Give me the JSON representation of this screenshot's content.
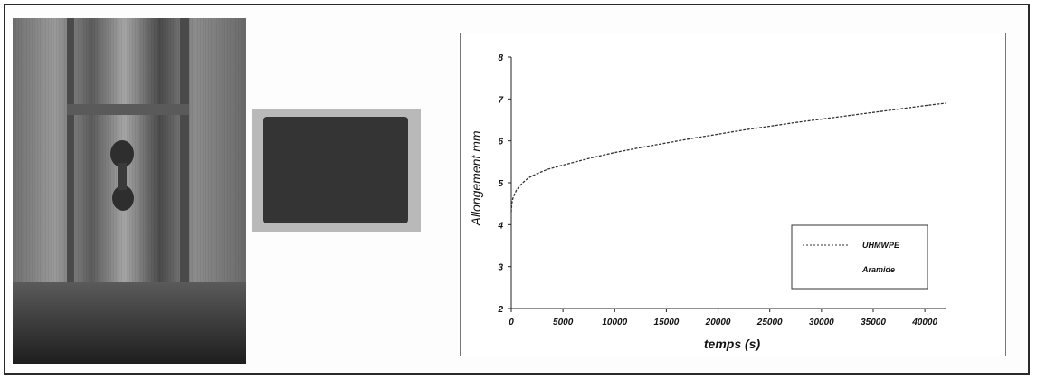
{
  "chart_data": {
    "type": "line",
    "xlabel": "temps (s)",
    "ylabel": "Allongement mm",
    "xlim": [
      0,
      42000
    ],
    "ylim": [
      2,
      8
    ],
    "x_ticks": [
      "0",
      "5000",
      "10000",
      "15000",
      "20000",
      "25000",
      "30000",
      "35000",
      "40000"
    ],
    "y_ticks": [
      "2",
      "3",
      "4",
      "5",
      "6",
      "7",
      "8"
    ],
    "grid": false,
    "legend_position": "bottom-right",
    "legend": [
      "UHMWPE",
      "Aramide"
    ],
    "series": [
      {
        "name": "UHMWPE",
        "color": "#333333",
        "x": [
          0,
          50,
          150,
          300,
          500,
          800,
          1200,
          1700,
          2500,
          3500,
          5000,
          7500,
          10000,
          12500,
          15000,
          17500,
          20000,
          22500,
          25000,
          27500,
          30000,
          32500,
          35000,
          37500,
          40000,
          42000
        ],
        "y": [
          4.3,
          4.5,
          4.62,
          4.72,
          4.82,
          4.92,
          5.02,
          5.12,
          5.22,
          5.32,
          5.42,
          5.58,
          5.72,
          5.84,
          5.95,
          6.06,
          6.16,
          6.26,
          6.35,
          6.44,
          6.52,
          6.6,
          6.68,
          6.76,
          6.84,
          6.9
        ]
      }
    ]
  },
  "labels": {
    "x_axis": "temps (s)",
    "y_axis": "Allongement mm",
    "legend_1": "UHMWPE",
    "legend_2": "Aramide"
  },
  "images": {
    "left_photo": "photo-of-tensile-test-rig",
    "middle_photo": "photo-of-fabric-sample"
  }
}
